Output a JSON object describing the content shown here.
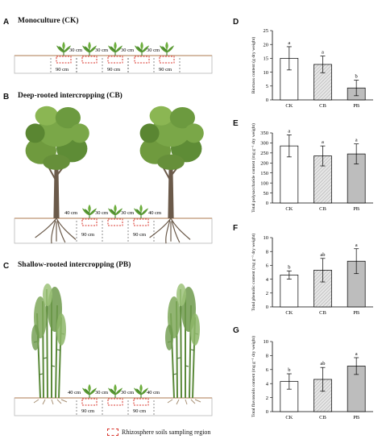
{
  "panels": {
    "A": {
      "letter": "A",
      "title": "Monoculture (CK)"
    },
    "B": {
      "letter": "B",
      "title": "Deep-rooted intercropping (CB)"
    },
    "C": {
      "letter": "C",
      "title": "Shallow-rooted intercropping (PB)"
    },
    "D": {
      "letter": "D"
    },
    "E": {
      "letter": "E"
    },
    "F": {
      "letter": "F"
    },
    "G": {
      "letter": "G"
    }
  },
  "scene_labels": {
    "row_spacing": "30 cm",
    "bottom_spacing": "90 cm",
    "edge_spacing": "40 cm"
  },
  "legend": {
    "label": "Rhizosphere soils sampling region"
  },
  "colors": {
    "bar_ck": "#ffffff",
    "bar_cb": "#d8d8d8",
    "bar_pb": "#bdbdbd",
    "sampling_box": "#d9342b",
    "soil_line": "#c9a58a"
  },
  "chart_data": [
    {
      "id": "D",
      "type": "bar",
      "ylabel": "Biomass content (g dry weight)",
      "categories": [
        "CK",
        "CB",
        "PB"
      ],
      "values": [
        15,
        12.8,
        4.3
      ],
      "errors": [
        4.2,
        3,
        2.8
      ],
      "letters": [
        "a",
        "a",
        "b"
      ],
      "ylim": [
        0,
        25
      ],
      "yticks": [
        0,
        5,
        10,
        15,
        20,
        25
      ]
    },
    {
      "id": "E",
      "type": "bar",
      "ylabel": "Total polysaccharide content (mg g⁻¹ dry weight)",
      "categories": [
        "CK",
        "CB",
        "PB"
      ],
      "values": [
        285,
        235,
        245
      ],
      "errors": [
        55,
        50,
        50
      ],
      "letters": [
        "a",
        "a",
        "a"
      ],
      "ylim": [
        0,
        350
      ],
      "yticks": [
        0,
        50,
        100,
        150,
        200,
        250,
        300,
        350
      ]
    },
    {
      "id": "F",
      "type": "bar",
      "ylabel": "Total phenolic content (mg g⁻¹ dry weight)",
      "categories": [
        "CK",
        "CB",
        "PB"
      ],
      "values": [
        4.6,
        5.3,
        6.6
      ],
      "errors": [
        0.6,
        1.7,
        1.8
      ],
      "letters": [
        "b",
        "ab",
        "a"
      ],
      "ylim": [
        0,
        10
      ],
      "yticks": [
        0,
        2,
        4,
        6,
        8,
        10
      ]
    },
    {
      "id": "G",
      "type": "bar",
      "ylabel": "Total flavonoids content (mg g⁻¹ dry weight)",
      "categories": [
        "CK",
        "CB",
        "PB"
      ],
      "values": [
        4.3,
        4.6,
        6.5
      ],
      "errors": [
        1.1,
        1.7,
        1.2
      ],
      "letters": [
        "b",
        "ab",
        "a"
      ],
      "ylim": [
        0,
        10
      ],
      "yticks": [
        0,
        2,
        4,
        6,
        8,
        10
      ]
    }
  ]
}
